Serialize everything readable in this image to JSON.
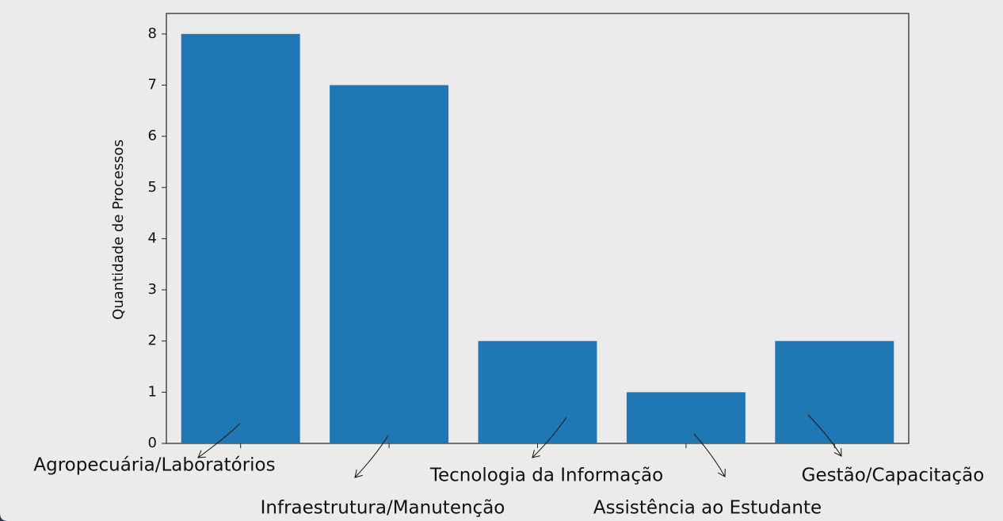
{
  "chart_data": {
    "type": "bar",
    "ylabel": "Quantidade de Processos",
    "categories": [
      "Agropecuária/Laboratórios",
      "Infraestrutura/Manutenção",
      "Tecnologia da Informação",
      "Assistência ao Estudante",
      "Gestão/Capacitação"
    ],
    "values": [
      8,
      7,
      2,
      1,
      2
    ],
    "color": "#1f77b4",
    "ylim": [
      0,
      8.4
    ],
    "yticks": [
      0,
      1,
      2,
      3,
      4,
      5,
      6,
      7,
      8
    ],
    "grid": false
  }
}
